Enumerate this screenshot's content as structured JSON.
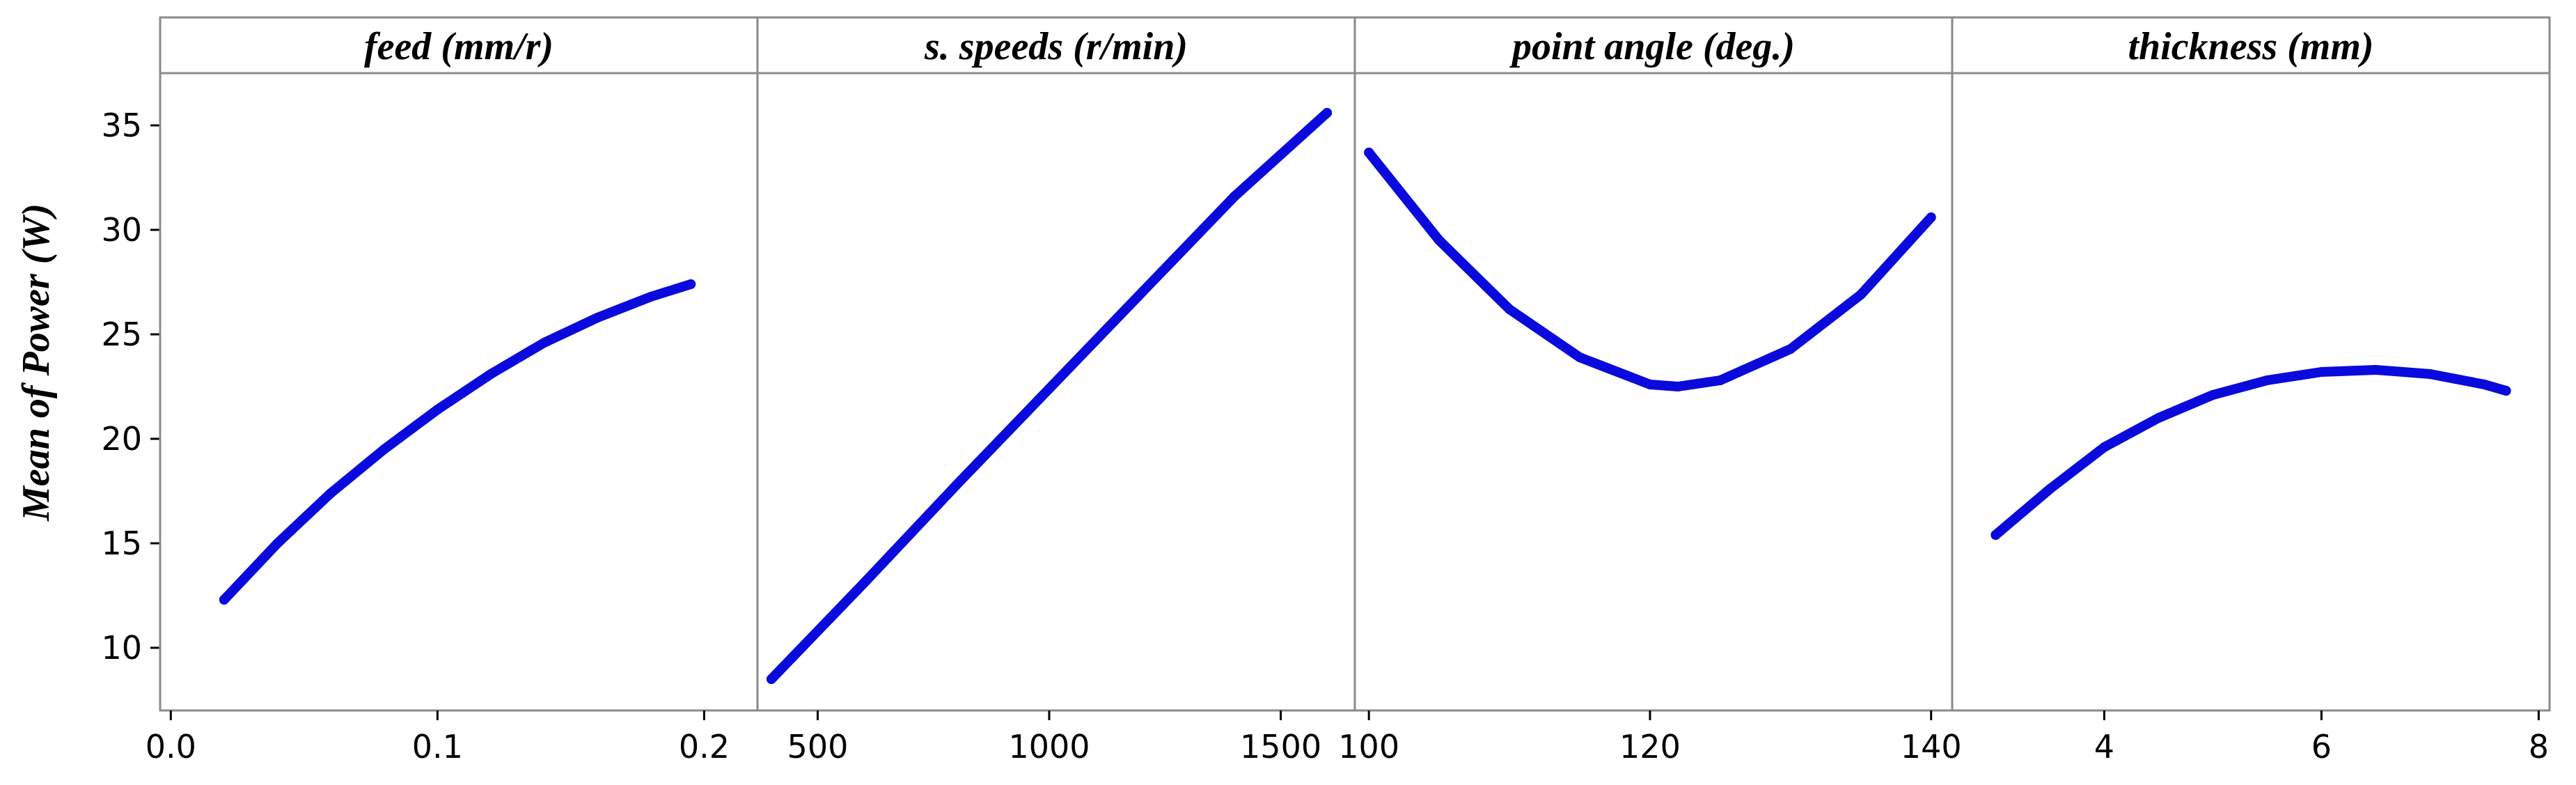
{
  "chart_data": {
    "type": "line",
    "ylabel": "Mean of Power (W)",
    "ylim": [
      7,
      37.5
    ],
    "y_ticks": [
      10,
      15,
      20,
      25,
      30,
      35
    ],
    "line_color": "#0a0adc",
    "grid": false,
    "panels": [
      {
        "title": "feed (mm/r)",
        "xlim": [
          -0.004,
          0.22
        ],
        "x_ticks": [
          "0.0",
          "0.1",
          "0.2"
        ],
        "x_tick_values": [
          0.0,
          0.1,
          0.2
        ],
        "series": [
          {
            "x": [
              0.02,
              0.04,
              0.06,
              0.08,
              0.1,
              0.12,
              0.14,
              0.16,
              0.18,
              0.195
            ],
            "y": [
              12.3,
              15.0,
              17.4,
              19.5,
              21.4,
              23.1,
              24.6,
              25.8,
              26.8,
              27.4
            ]
          }
        ]
      },
      {
        "title": "s. speeds (r/min)",
        "xlim": [
          370,
          1660
        ],
        "x_ticks": [
          "500",
          "1000",
          "1500"
        ],
        "x_tick_values": [
          500,
          1000,
          1500
        ],
        "series": [
          {
            "x": [
              400,
              600,
              800,
              1000,
              1200,
              1400,
              1600
            ],
            "y": [
              8.5,
              13.1,
              17.8,
              22.4,
              27.0,
              31.6,
              35.6
            ]
          }
        ]
      },
      {
        "title": "point angle (deg.)",
        "xlim": [
          99,
          141.5
        ],
        "x_ticks": [
          "100",
          "120",
          "140"
        ],
        "x_tick_values": [
          100,
          120,
          140
        ],
        "series": [
          {
            "x": [
              100,
              105,
              110,
              115,
              120,
              122,
              125,
              130,
              135,
              140
            ],
            "y": [
              33.7,
              29.5,
              26.2,
              23.9,
              22.6,
              22.5,
              22.8,
              24.3,
              26.9,
              30.6
            ]
          }
        ]
      },
      {
        "title": "thickness (mm)",
        "xlim": [
          2.6,
          8.1
        ],
        "x_ticks": [
          "4",
          "6",
          "8"
        ],
        "x_tick_values": [
          4,
          6,
          8
        ],
        "series": [
          {
            "x": [
              3.0,
              3.5,
              4.0,
              4.5,
              5.0,
              5.5,
              6.0,
              6.5,
              7.0,
              7.5,
              7.7
            ],
            "y": [
              15.4,
              17.6,
              19.6,
              21.0,
              22.1,
              22.8,
              23.2,
              23.3,
              23.1,
              22.6,
              22.3
            ]
          }
        ]
      }
    ]
  }
}
